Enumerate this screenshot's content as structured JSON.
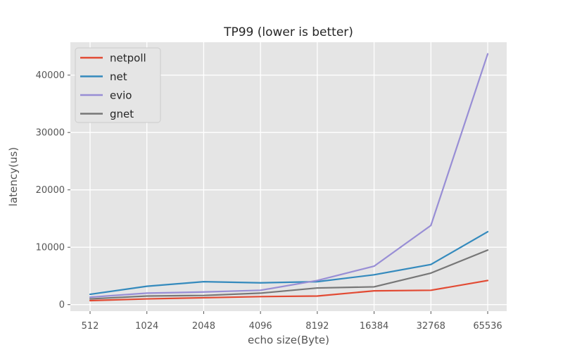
{
  "title": "TP99 (lower is better)",
  "chart_data": {
    "type": "line",
    "title": "TP99 (lower is better)",
    "xlabel": "echo size(Byte)",
    "ylabel": "latency(us)",
    "x_categories": [
      "512",
      "1024",
      "2048",
      "4096",
      "8192",
      "16384",
      "32768",
      "65536"
    ],
    "series": [
      {
        "name": "netpoll",
        "color": "#E24A33",
        "values": [
          700,
          1000,
          1200,
          1400,
          1500,
          2400,
          2500,
          4200
        ]
      },
      {
        "name": "net",
        "color": "#348ABD",
        "values": [
          1800,
          3200,
          4000,
          3800,
          4000,
          5200,
          7000,
          12700
        ]
      },
      {
        "name": "evio",
        "color": "#988ED5",
        "values": [
          1300,
          2000,
          2200,
          2500,
          4200,
          6700,
          13800,
          43700
        ]
      },
      {
        "name": "gnet",
        "color": "#777777",
        "values": [
          1000,
          1500,
          1600,
          2000,
          2900,
          3100,
          5500,
          9500
        ]
      }
    ],
    "y_ticks": [
      0,
      10000,
      20000,
      30000,
      40000
    ],
    "ylim": [
      -1140,
      45730
    ],
    "grid": true,
    "legend_position": "upper left",
    "plot_background": "#E5E5E5",
    "grid_color": "#FFFFFF",
    "tick_color": "#555555",
    "legend_face": "#E5E5E5",
    "legend_edge": "#CCCCCC"
  }
}
